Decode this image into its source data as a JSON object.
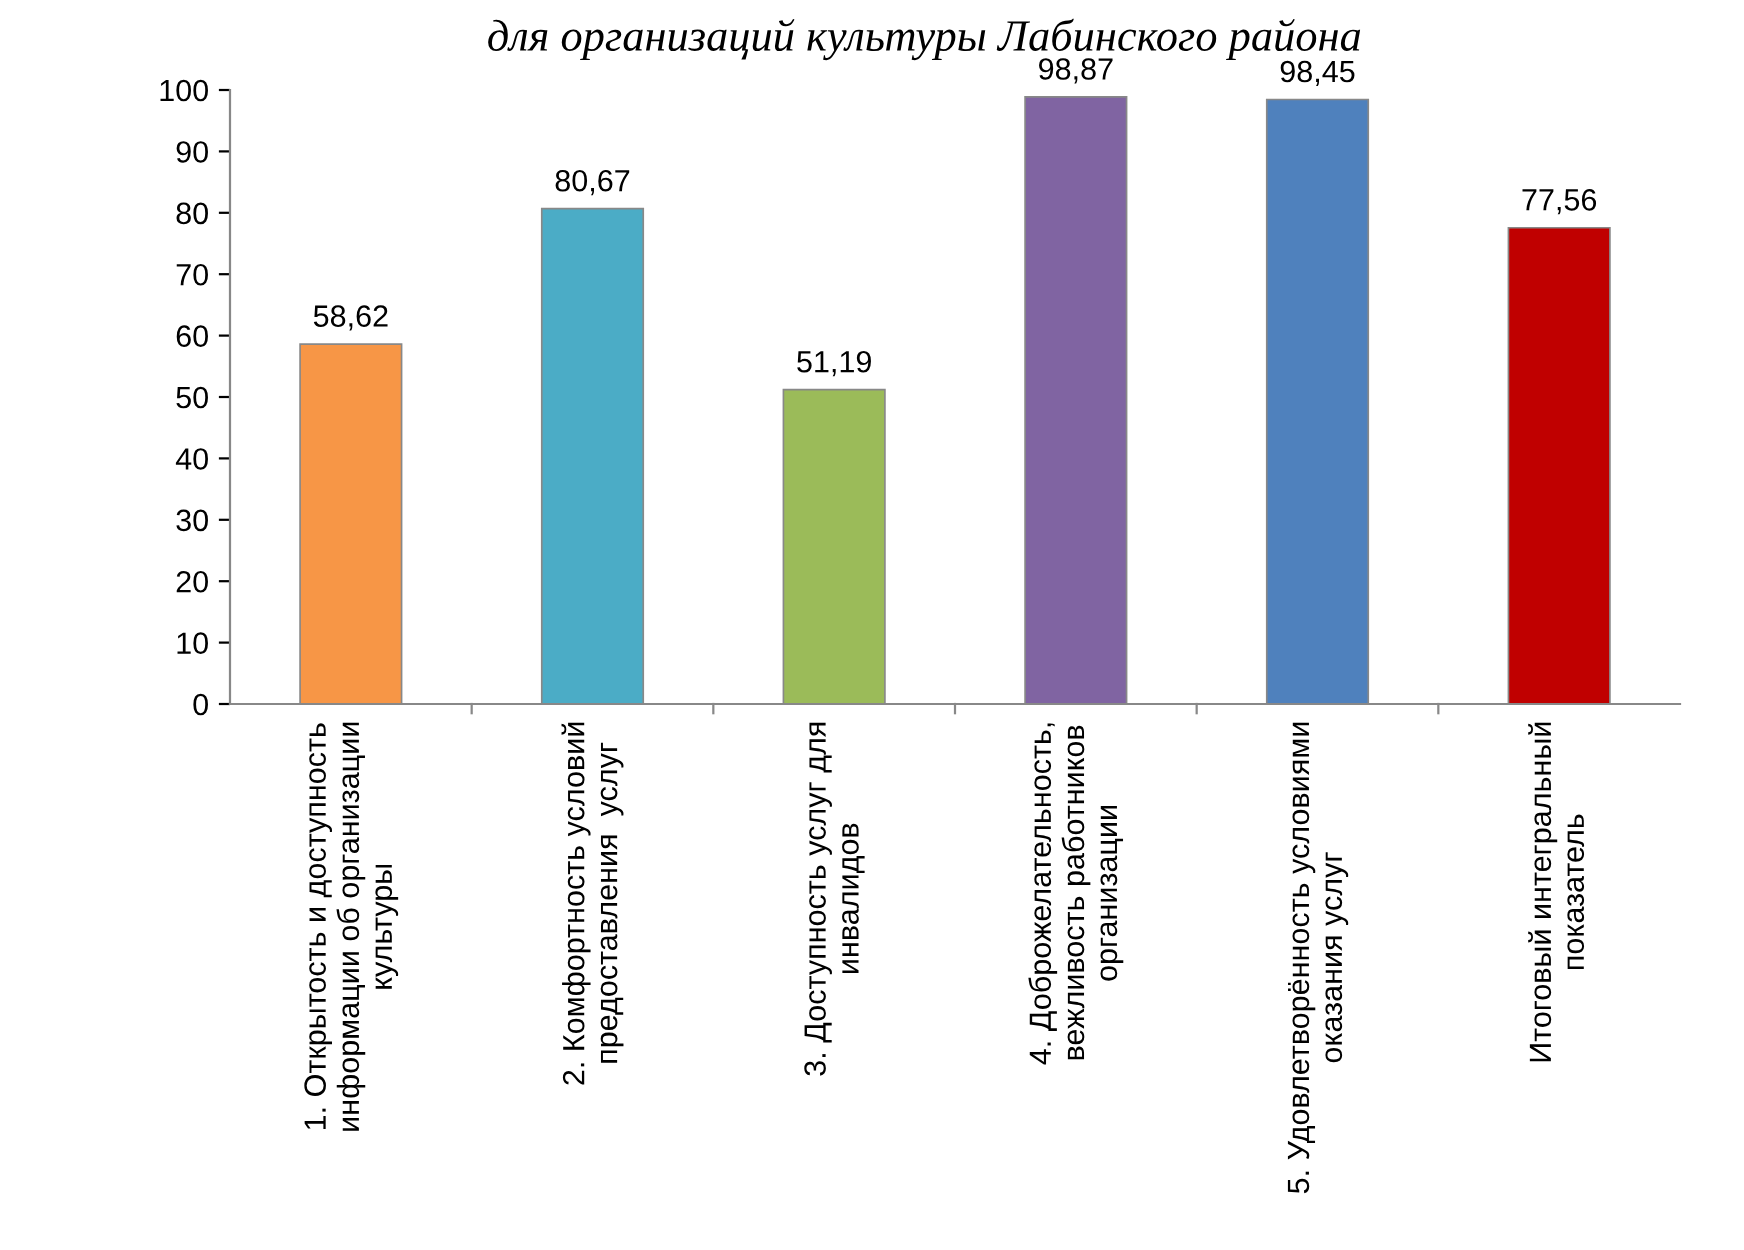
{
  "chart_data": {
    "type": "bar",
    "title": "для организаций культуры Лабинского района",
    "categories": [
      "1. Открытость и доступность\nинформации об организации\nкультуры",
      "2. Комфортность условий\nпредоставления  услуг",
      "3. Доступность услуг для\nинвалидов",
      "4. Доброжелательность,\nвежливость работников\nорганизации",
      "5. Удовлетворённость условиями\nоказания услуг",
      "Итоговый интегральный\nпоказатель"
    ],
    "values": [
      58.62,
      80.67,
      51.19,
      98.87,
      98.45,
      77.56
    ],
    "colors": [
      "#f79646",
      "#4bacc6",
      "#9bbb59",
      "#8064a2",
      "#4f81bd",
      "#c00000"
    ],
    "value_labels": [
      "58,62",
      "80,67",
      "51,19",
      "98,87",
      "98,45",
      "77,56"
    ],
    "ylim": [
      0,
      100
    ],
    "yticks": [
      0,
      10,
      20,
      30,
      40,
      50,
      60,
      70,
      80,
      90,
      100
    ],
    "grid": false,
    "legend": false
  }
}
